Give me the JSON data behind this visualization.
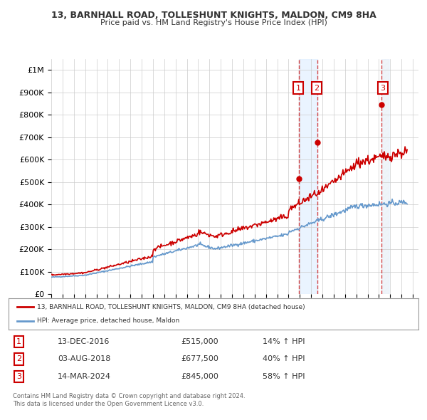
{
  "title": "13, BARNHALL ROAD, TOLLESHUNT KNIGHTS, MALDON, CM9 8HA",
  "subtitle": "Price paid vs. HM Land Registry's House Price Index (HPI)",
  "ylim": [
    0,
    1050000
  ],
  "yticks": [
    0,
    100000,
    200000,
    300000,
    400000,
    500000,
    600000,
    700000,
    800000,
    900000,
    1000000
  ],
  "ytick_labels": [
    "£0",
    "£100K",
    "£200K",
    "£300K",
    "£400K",
    "£500K",
    "£600K",
    "£700K",
    "£800K",
    "£900K",
    "£1M"
  ],
  "xlim_start": 1995.0,
  "xlim_end": 2027.5,
  "transactions": [
    {
      "date_num": 2016.95,
      "price": 515000,
      "label": "1"
    },
    {
      "date_num": 2018.58,
      "price": 677500,
      "label": "2"
    },
    {
      "date_num": 2024.2,
      "price": 845000,
      "label": "3"
    }
  ],
  "sale_color": "#cc0000",
  "hpi_color": "#6699cc",
  "legend_sale_label": "13, BARNHALL ROAD, TOLLESHUNT KNIGHTS, MALDON, CM9 8HA (detached house)",
  "legend_hpi_label": "HPI: Average price, detached house, Maldon",
  "table_rows": [
    {
      "num": "1",
      "date": "13-DEC-2016",
      "price": "£515,000",
      "change": "14% ↑ HPI"
    },
    {
      "num": "2",
      "date": "03-AUG-2018",
      "price": "£677,500",
      "change": "40% ↑ HPI"
    },
    {
      "num": "3",
      "date": "14-MAR-2024",
      "price": "£845,000",
      "change": "58% ↑ HPI"
    }
  ],
  "footnote1": "Contains HM Land Registry data © Crown copyright and database right 2024.",
  "footnote2": "This data is licensed under the Open Government Licence v3.0.",
  "background_color": "#ffffff",
  "grid_color": "#cccccc",
  "shading_color": "#ddeeff"
}
